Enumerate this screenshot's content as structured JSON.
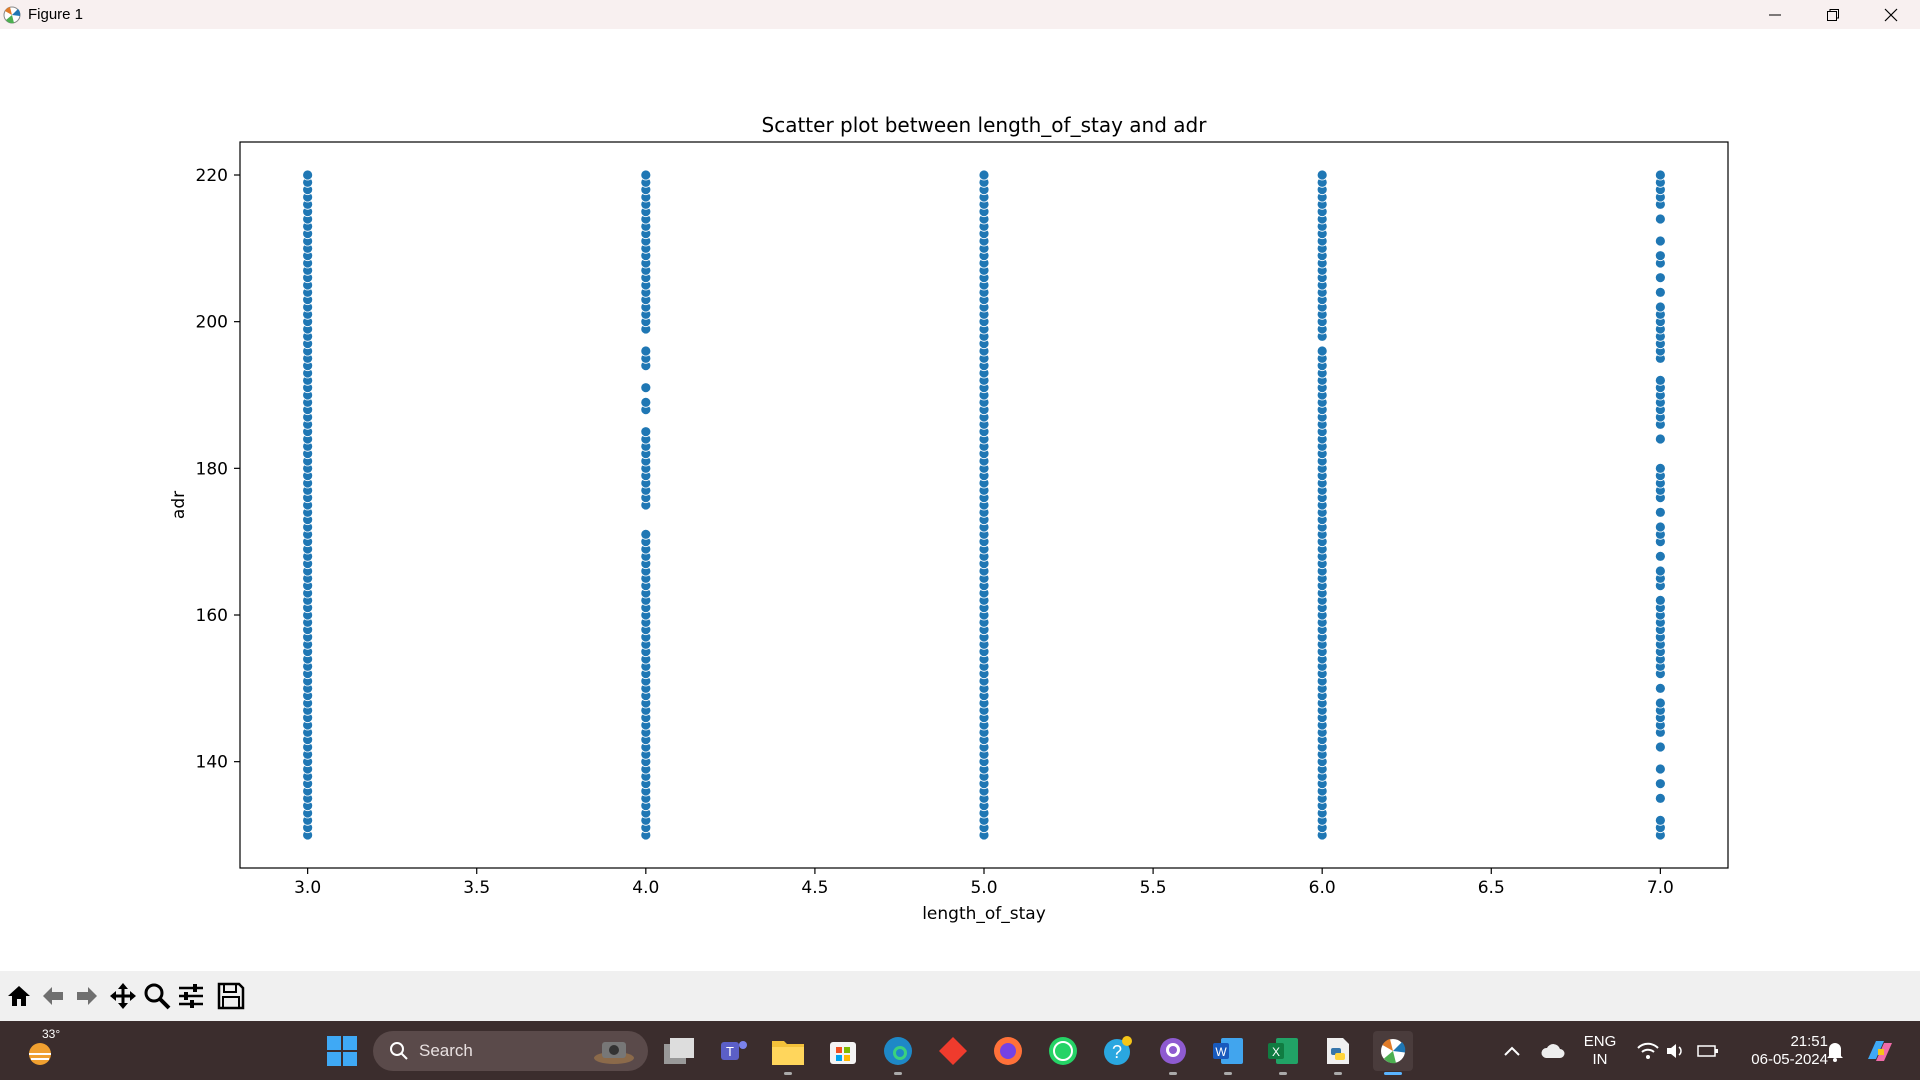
{
  "window": {
    "title": "Figure 1"
  },
  "chart_data": {
    "type": "scatter",
    "title": "Scatter plot between length_of_stay and adr",
    "xlabel": "length_of_stay",
    "ylabel": "adr",
    "xlim": [
      2.8,
      7.2
    ],
    "ylim": [
      125.5,
      224.5
    ],
    "xticks": [
      "3.0",
      "3.5",
      "4.0",
      "4.5",
      "5.0",
      "5.5",
      "6.0",
      "6.5",
      "7.0"
    ],
    "yticks": [
      "140",
      "160",
      "180",
      "200",
      "220"
    ],
    "color": "#1f77b4",
    "grid": false,
    "series": [
      {
        "x": 3,
        "y_range": [
          130,
          220
        ],
        "step": 1,
        "gaps": []
      },
      {
        "x": 4,
        "y_range": [
          130,
          220
        ],
        "step": 1,
        "gaps": [
          [
            174,
            172
          ],
          [
            198,
            197
          ],
          [
            193,
            192
          ],
          [
            190,
            190
          ],
          [
            187,
            186
          ]
        ]
      },
      {
        "x": 5,
        "y_range": [
          130,
          220
        ],
        "step": 1,
        "gaps": []
      },
      {
        "x": 6,
        "y_range": [
          130,
          220
        ],
        "step": 1,
        "gaps": [
          [
            197,
            197
          ]
        ]
      },
      {
        "x": 7,
        "values": [
          130,
          131,
          132,
          135,
          137,
          139,
          142,
          144,
          145,
          146,
          147,
          148,
          150,
          152,
          153,
          154,
          155,
          156,
          157,
          158,
          159,
          160,
          161,
          162,
          164,
          165,
          166,
          168,
          170,
          171,
          172,
          174,
          176,
          177,
          178,
          179,
          180,
          184,
          186,
          187,
          188,
          189,
          190,
          191,
          192,
          195,
          196,
          197,
          198,
          199,
          200,
          201,
          202,
          204,
          206,
          208,
          209,
          211,
          214,
          216,
          217,
          218,
          219,
          220
        ]
      }
    ]
  },
  "toolbar": {
    "icons": [
      "home-icon",
      "back-arrow-icon",
      "forward-arrow-icon",
      "pan-icon",
      "zoom-icon",
      "configure-subplots-icon",
      "save-icon"
    ]
  },
  "taskbar": {
    "weather": "33°",
    "search_placeholder": "Search",
    "lang_line1": "ENG",
    "lang_line2": "IN",
    "time": "21:51",
    "date": "06-05-2024"
  }
}
